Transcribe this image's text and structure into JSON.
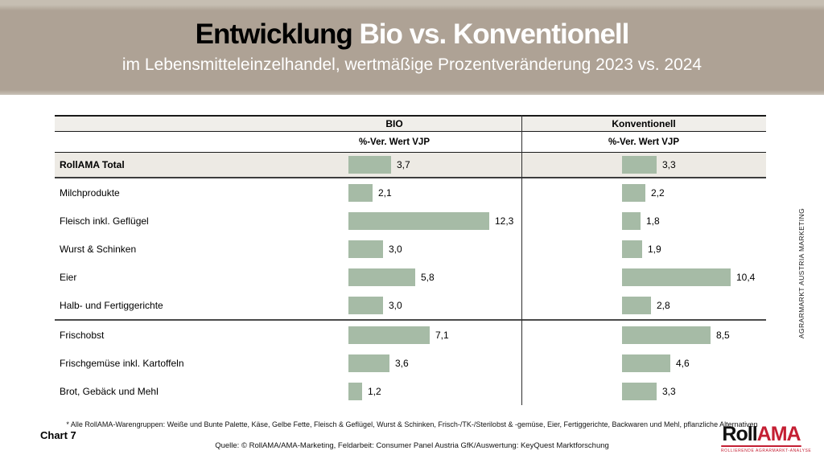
{
  "banner": {
    "title_part1": "Entwicklung ",
    "title_part2": "Bio vs. Konventionell",
    "subtitle": "im Lebensmitteleinzelhandel, wertmäßige Prozentveränderung 2023 vs. 2024",
    "background_color": "#aea295"
  },
  "table": {
    "column_headers": [
      "BIO",
      "Konventionell"
    ],
    "subheader": "%-Ver. Wert VJP"
  },
  "chart_data": {
    "type": "bar",
    "orientation": "horizontal",
    "title": "Entwicklung Bio vs. Konventionell",
    "subtitle": "im Lebensmitteleinzelhandel, wertmäßige Prozentveränderung 2023 vs. 2024",
    "categories": [
      "RollAMA Total",
      "Milchprodukte",
      "Fleisch inkl. Geflügel",
      "Wurst & Schinken",
      "Eier",
      "Halb- und Fertiggerichte",
      "Frischobst",
      "Frischgemüse inkl. Kartoffeln",
      "Brot, Gebäck und Mehl"
    ],
    "series": [
      {
        "name": "BIO",
        "values": [
          3.7,
          2.1,
          12.3,
          3.0,
          5.8,
          3.0,
          7.1,
          3.6,
          1.2
        ]
      },
      {
        "name": "Konventionell",
        "values": [
          3.3,
          2.2,
          1.8,
          1.9,
          10.4,
          2.8,
          8.5,
          4.6,
          3.3
        ]
      }
    ],
    "value_unit": "%-Ver. Wert VJP",
    "value_format": "decimal-comma",
    "emphasized_row": "RollAMA Total",
    "group_separator_after": "Halb- und Fertiggerichte",
    "bar_color": "#a6bba6",
    "band_color": "#f0eeea",
    "total_row_color": "#edeae4",
    "xlim": [
      0,
      13
    ],
    "grid": false,
    "legend_position": "column-headers"
  },
  "footer": {
    "footnote": "* Alle RollAMA-Warengruppen: Weiße und Bunte Palette, Käse, Gelbe Fette, Fleisch & Geflügel, Wurst & Schinken, Frisch-/TK-/Sterilobst & -gemüse, Eier, Fertiggerichte, Backwaren und Mehl, pflanzliche Alternativen",
    "source": "Quelle: © RollAMA/AMA-Marketing, Feldarbeit: Consumer Panel Austria GfK/Auswertung: KeyQuest Marktforschung",
    "chart_label": "Chart 7"
  },
  "side_text": "AGRARMARKT AUSTRIA MARKETING",
  "logo": {
    "part1": "Roll",
    "part2": "AMA",
    "tagline": "ROLLIERENDE AGRARMARKT-ANALYSE",
    "accent_color": "#c41f33"
  }
}
